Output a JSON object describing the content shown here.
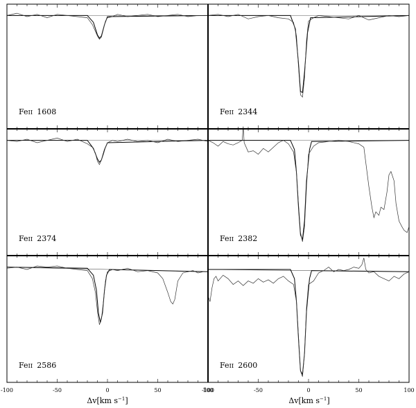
{
  "chart_data": [
    {
      "type": "line",
      "label": "Fe II 1608",
      "label_parts": [
        "Fe",
        "II",
        "1608"
      ],
      "x_range": [
        -100,
        100
      ],
      "y_range": [
        0,
        1.1
      ],
      "continuum": {
        "start": 1.0,
        "end": 1.0
      },
      "data": {
        "x": [
          -100,
          -90,
          -80,
          -70,
          -60,
          -50,
          -40,
          -30,
          -20,
          -15,
          -10,
          -8,
          -6,
          -4,
          -2,
          0,
          5,
          10,
          20,
          30,
          40,
          50,
          60,
          70,
          80,
          90,
          100
        ],
        "y": [
          1.0,
          1.02,
          0.99,
          1.01,
          0.98,
          1.01,
          1.0,
          0.99,
          0.98,
          0.92,
          0.82,
          0.79,
          0.81,
          0.88,
          0.95,
          0.98,
          0.99,
          1.01,
          0.99,
          1.0,
          1.01,
          0.99,
          1.0,
          1.01,
          0.99,
          1.0,
          1.0
        ]
      },
      "model": {
        "x": [
          -100,
          -20,
          -14,
          -10,
          -8,
          -6,
          -3,
          0,
          100
        ],
        "y": [
          1.0,
          1.0,
          0.94,
          0.83,
          0.8,
          0.82,
          0.92,
          0.99,
          1.0
        ]
      }
    },
    {
      "type": "line",
      "label": "Fe II 2344",
      "label_parts": [
        "Fe",
        "II",
        "2344"
      ],
      "x_range": [
        -100,
        100
      ],
      "y_range": [
        0,
        1.1
      ],
      "continuum": {
        "start": 1.0,
        "end": 1.0
      },
      "data": {
        "x": [
          -100,
          -90,
          -80,
          -70,
          -60,
          -50,
          -40,
          -30,
          -20,
          -15,
          -12,
          -10,
          -8,
          -6,
          -4,
          -2,
          0,
          5,
          10,
          20,
          30,
          40,
          50,
          60,
          70,
          80,
          90,
          100
        ],
        "y": [
          1.0,
          1.01,
          0.99,
          1.01,
          0.97,
          0.99,
          1.0,
          0.98,
          0.97,
          0.94,
          0.82,
          0.55,
          0.3,
          0.28,
          0.45,
          0.78,
          0.95,
          0.98,
          1.0,
          0.99,
          0.98,
          0.97,
          1.0,
          0.96,
          0.98,
          1.0,
          0.99,
          1.0
        ]
      },
      "model": {
        "x": [
          -100,
          -18,
          -13,
          -10,
          -8,
          -6,
          -4,
          -1,
          2,
          100
        ],
        "y": [
          1.0,
          1.0,
          0.88,
          0.58,
          0.33,
          0.32,
          0.5,
          0.85,
          0.98,
          1.0
        ]
      }
    },
    {
      "type": "line",
      "label": "Fe II 2374",
      "label_parts": [
        "Fe",
        "II",
        "2374"
      ],
      "x_range": [
        -100,
        100
      ],
      "y_range": [
        0,
        1.1
      ],
      "continuum": {
        "start": 1.0,
        "end": 1.0
      },
      "data": {
        "x": [
          -100,
          -90,
          -80,
          -70,
          -60,
          -50,
          -40,
          -30,
          -20,
          -15,
          -12,
          -10,
          -8,
          -6,
          -4,
          -2,
          0,
          5,
          10,
          20,
          30,
          40,
          50,
          60,
          70,
          80,
          90,
          100
        ],
        "y": [
          1.0,
          0.99,
          1.01,
          0.98,
          1.0,
          1.02,
          0.99,
          1.01,
          0.97,
          0.94,
          0.89,
          0.82,
          0.79,
          0.83,
          0.88,
          0.94,
          0.98,
          1.0,
          0.99,
          1.01,
          0.99,
          1.0,
          0.98,
          1.01,
          0.99,
          1.0,
          1.01,
          0.99
        ]
      },
      "model": {
        "x": [
          -100,
          -20,
          -14,
          -10,
          -8,
          -6,
          -3,
          0,
          100
        ],
        "y": [
          1.0,
          1.0,
          0.93,
          0.84,
          0.81,
          0.83,
          0.92,
          0.98,
          1.0
        ]
      }
    },
    {
      "type": "line",
      "label": "Fe II 2382",
      "label_parts": [
        "Fe",
        "II",
        "2382"
      ],
      "x_range": [
        -100,
        100
      ],
      "y_range": [
        0,
        1.1
      ],
      "continuum": {
        "start": 1.0,
        "end": 1.0
      },
      "data": {
        "x": [
          -100,
          -95,
          -90,
          -85,
          -80,
          -75,
          -70,
          -66,
          -65,
          -64,
          -60,
          -55,
          -50,
          -45,
          -40,
          -35,
          -30,
          -25,
          -20,
          -15,
          -12,
          -10,
          -8,
          -6,
          -4,
          -2,
          0,
          5,
          10,
          20,
          30,
          40,
          50,
          55,
          60,
          63,
          65,
          67,
          70,
          72,
          75,
          78,
          80,
          82,
          85,
          87,
          90,
          93,
          95,
          98,
          100
        ],
        "y": [
          1.0,
          0.98,
          0.95,
          0.99,
          0.97,
          0.96,
          0.98,
          1.0,
          1.12,
          0.98,
          0.9,
          0.91,
          0.88,
          0.93,
          0.9,
          0.94,
          0.98,
          1.0,
          0.97,
          0.9,
          0.72,
          0.45,
          0.2,
          0.12,
          0.25,
          0.6,
          0.88,
          0.95,
          0.98,
          0.99,
          1.0,
          0.99,
          0.97,
          0.94,
          0.6,
          0.42,
          0.33,
          0.38,
          0.35,
          0.42,
          0.4,
          0.55,
          0.7,
          0.73,
          0.65,
          0.45,
          0.3,
          0.25,
          0.22,
          0.2,
          0.25
        ]
      },
      "model": {
        "x": [
          -100,
          -18,
          -14,
          -12,
          -10,
          -8,
          -6,
          -4,
          -2,
          1,
          3,
          100
        ],
        "y": [
          1.0,
          1.0,
          0.92,
          0.72,
          0.42,
          0.18,
          0.14,
          0.3,
          0.65,
          0.92,
          0.99,
          1.0
        ]
      }
    },
    {
      "type": "line",
      "label": "Fe II 2586",
      "label_parts": [
        "Fe",
        "II",
        "2586"
      ],
      "x_range": [
        -100,
        100
      ],
      "y_range": [
        0,
        1.1
      ],
      "continuum": {
        "start": 1.0,
        "end": 0.96
      },
      "data": {
        "x": [
          -100,
          -90,
          -80,
          -70,
          -60,
          -50,
          -40,
          -30,
          -20,
          -15,
          -12,
          -10,
          -8,
          -6,
          -4,
          -2,
          0,
          5,
          10,
          20,
          30,
          40,
          50,
          55,
          60,
          63,
          65,
          67,
          70,
          75,
          80,
          85,
          90,
          95,
          100
        ],
        "y": [
          0.99,
          1.0,
          0.98,
          1.01,
          1.0,
          1.01,
          0.99,
          0.98,
          0.97,
          0.9,
          0.78,
          0.62,
          0.5,
          0.55,
          0.7,
          0.88,
          0.96,
          0.98,
          0.97,
          0.99,
          0.96,
          0.97,
          0.95,
          0.9,
          0.78,
          0.7,
          0.68,
          0.72,
          0.88,
          0.95,
          0.96,
          0.97,
          0.95,
          0.96,
          0.96
        ]
      },
      "model": {
        "x": [
          -100,
          -20,
          -14,
          -11,
          -9,
          -7,
          -5,
          -3,
          -1,
          2,
          100
        ],
        "y": [
          1.0,
          0.99,
          0.93,
          0.8,
          0.6,
          0.52,
          0.6,
          0.8,
          0.93,
          0.98,
          0.96
        ]
      }
    },
    {
      "type": "line",
      "label": "Fe II 2600",
      "label_parts": [
        "Fe",
        "II",
        "2600"
      ],
      "x_range": [
        -100,
        100
      ],
      "y_range": [
        0,
        1.1
      ],
      "continuum": {
        "start": 0.98,
        "end": 0.96
      },
      "data": {
        "x": [
          -100,
          -98,
          -96,
          -94,
          -92,
          -90,
          -85,
          -80,
          -75,
          -70,
          -65,
          -60,
          -55,
          -50,
          -45,
          -40,
          -35,
          -30,
          -25,
          -20,
          -15,
          -12,
          -10,
          -8,
          -6,
          -4,
          -2,
          0,
          5,
          10,
          15,
          20,
          25,
          30,
          35,
          40,
          45,
          50,
          53,
          55,
          57,
          60,
          65,
          70,
          75,
          80,
          85,
          90,
          95,
          100
        ],
        "y": [
          0.75,
          0.7,
          0.82,
          0.9,
          0.92,
          0.88,
          0.93,
          0.9,
          0.85,
          0.88,
          0.84,
          0.88,
          0.86,
          0.9,
          0.87,
          0.89,
          0.86,
          0.9,
          0.92,
          0.88,
          0.85,
          0.7,
          0.4,
          0.1,
          0.05,
          0.25,
          0.65,
          0.85,
          0.88,
          0.95,
          0.97,
          1.0,
          0.96,
          0.98,
          0.97,
          0.98,
          1.0,
          0.99,
          1.02,
          1.08,
          0.98,
          0.95,
          0.96,
          0.92,
          0.9,
          0.88,
          0.92,
          0.9,
          0.94,
          0.96
        ]
      },
      "model": {
        "x": [
          -100,
          -18,
          -14,
          -12,
          -10,
          -8,
          -6,
          -4,
          -2,
          1,
          3,
          100
        ],
        "y": [
          0.98,
          0.98,
          0.9,
          0.7,
          0.38,
          0.1,
          0.07,
          0.25,
          0.62,
          0.9,
          0.97,
          0.96
        ]
      }
    }
  ],
  "x_axis": {
    "tick_labels": [
      "-100",
      "-50",
      "0",
      "50",
      "100"
    ],
    "tick_values": [
      -100,
      -50,
      0,
      50,
      100
    ],
    "minor_step": 10,
    "title_parts": [
      "Δv",
      "[km s",
      "−1",
      "]"
    ]
  },
  "colors": {
    "frame": "#000000",
    "data_line": "#333333",
    "model_line": "#000000",
    "continuum_line": "#555555"
  }
}
